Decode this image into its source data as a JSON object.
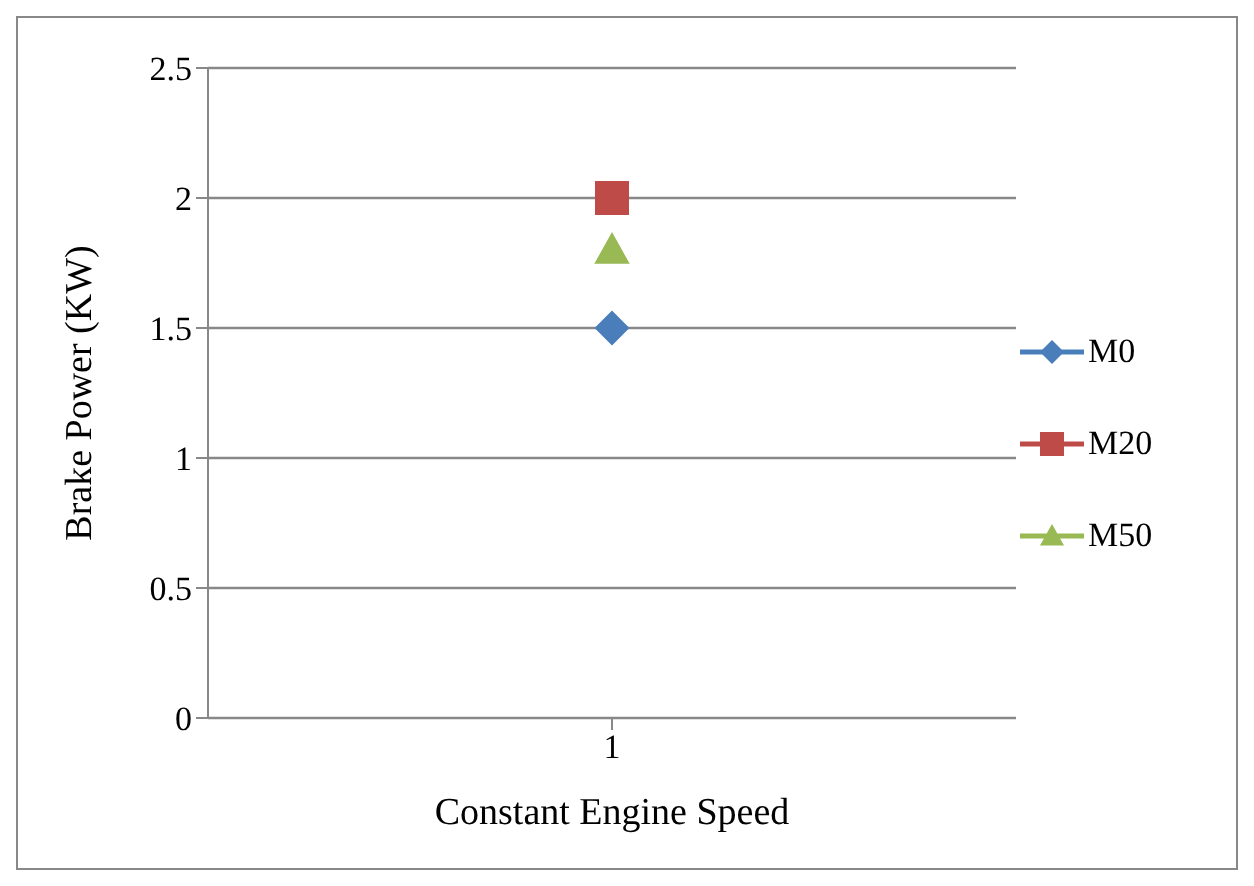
{
  "chart_data": {
    "type": "line",
    "xlabel": "Constant Engine Speed",
    "ylabel": "Brake Power (KW)",
    "categories": [
      "1"
    ],
    "series": [
      {
        "name": "M0",
        "color": "#4a7ebb",
        "values": [
          1.5
        ],
        "marker": "diamond"
      },
      {
        "name": "M20",
        "color": "#be4b48",
        "values": [
          2
        ],
        "marker": "square"
      },
      {
        "name": "M50",
        "color": "#98b954",
        "values": [
          1.8
        ],
        "marker": "triangle"
      }
    ],
    "ylim": [
      0,
      2.5
    ],
    "yticks": [
      0,
      0.5,
      1,
      1.5,
      2,
      2.5
    ],
    "grid": "y",
    "legend": "right"
  }
}
